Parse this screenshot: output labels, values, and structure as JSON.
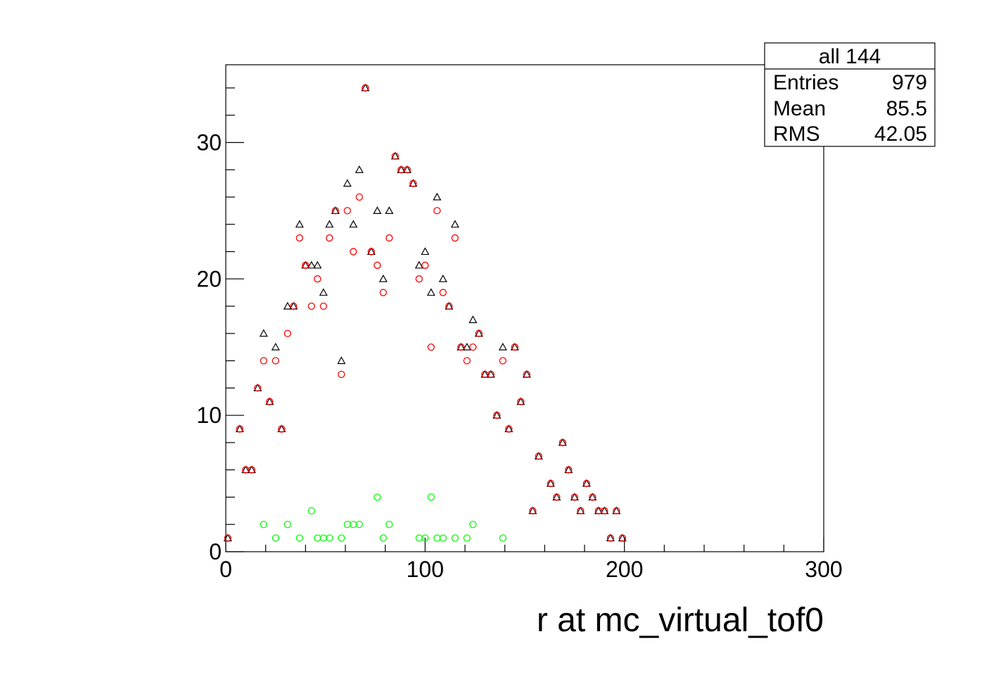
{
  "chart_data": {
    "type": "scatter",
    "title": "",
    "xlabel": "r at mc_virtual_tof0",
    "ylabel": "",
    "xlim": [
      0,
      300
    ],
    "ylim": [
      0,
      35.7
    ],
    "x_ticks": [
      0,
      100,
      200,
      300
    ],
    "y_ticks": [
      0,
      10,
      20,
      30
    ],
    "grid": false,
    "stats_box": {
      "title": "all 144",
      "rows": [
        {
          "label": "Entries",
          "value": "979"
        },
        {
          "label": "Mean",
          "value": "85.5"
        },
        {
          "label": "RMS",
          "value": "42.05"
        }
      ]
    },
    "series": [
      {
        "marker": "triangle-open",
        "color": "#000000",
        "points": [
          [
            1,
            1
          ],
          [
            7,
            9
          ],
          [
            10,
            6
          ],
          [
            13,
            6
          ],
          [
            16,
            12
          ],
          [
            19,
            16
          ],
          [
            22,
            11
          ],
          [
            25,
            15
          ],
          [
            28,
            9
          ],
          [
            31,
            18
          ],
          [
            34,
            18
          ],
          [
            37,
            24
          ],
          [
            40,
            21
          ],
          [
            43,
            21
          ],
          [
            46,
            21
          ],
          [
            49,
            19
          ],
          [
            52,
            24
          ],
          [
            55,
            25
          ],
          [
            58,
            14
          ],
          [
            61,
            27
          ],
          [
            64,
            24
          ],
          [
            67,
            28
          ],
          [
            70,
            34
          ],
          [
            73,
            22
          ],
          [
            76,
            25
          ],
          [
            79,
            20
          ],
          [
            82,
            25
          ],
          [
            85,
            29
          ],
          [
            88,
            28
          ],
          [
            91,
            28
          ],
          [
            94,
            27
          ],
          [
            97,
            21
          ],
          [
            100,
            22
          ],
          [
            103,
            19
          ],
          [
            106,
            26
          ],
          [
            109,
            20
          ],
          [
            112,
            18
          ],
          [
            115,
            24
          ],
          [
            118,
            15
          ],
          [
            121,
            15
          ],
          [
            124,
            17
          ],
          [
            127,
            16
          ],
          [
            130,
            13
          ],
          [
            133,
            13
          ],
          [
            136,
            10
          ],
          [
            139,
            15
          ],
          [
            142,
            9
          ],
          [
            145,
            15
          ],
          [
            148,
            11
          ],
          [
            151,
            13
          ],
          [
            154,
            3
          ],
          [
            157,
            7
          ],
          [
            163,
            5
          ],
          [
            166,
            4
          ],
          [
            169,
            8
          ],
          [
            172,
            6
          ],
          [
            175,
            4
          ],
          [
            178,
            3
          ],
          [
            181,
            5
          ],
          [
            184,
            4
          ],
          [
            187,
            3
          ],
          [
            190,
            3
          ],
          [
            193,
            1
          ],
          [
            196,
            3
          ],
          [
            199,
            1
          ]
        ]
      },
      {
        "marker": "circle-open",
        "color": "#ff0000",
        "points": [
          [
            1,
            1
          ],
          [
            7,
            9
          ],
          [
            10,
            6
          ],
          [
            13,
            6
          ],
          [
            16,
            12
          ],
          [
            19,
            14
          ],
          [
            22,
            11
          ],
          [
            25,
            14
          ],
          [
            28,
            9
          ],
          [
            31,
            16
          ],
          [
            34,
            18
          ],
          [
            37,
            23
          ],
          [
            40,
            21
          ],
          [
            43,
            18
          ],
          [
            46,
            20
          ],
          [
            49,
            18
          ],
          [
            52,
            23
          ],
          [
            55,
            25
          ],
          [
            58,
            13
          ],
          [
            61,
            25
          ],
          [
            64,
            22
          ],
          [
            67,
            26
          ],
          [
            70,
            34
          ],
          [
            73,
            22
          ],
          [
            76,
            21
          ],
          [
            79,
            19
          ],
          [
            82,
            23
          ],
          [
            85,
            29
          ],
          [
            88,
            28
          ],
          [
            91,
            28
          ],
          [
            94,
            27
          ],
          [
            97,
            20
          ],
          [
            100,
            21
          ],
          [
            103,
            15
          ],
          [
            106,
            25
          ],
          [
            109,
            19
          ],
          [
            112,
            18
          ],
          [
            115,
            23
          ],
          [
            118,
            15
          ],
          [
            121,
            14
          ],
          [
            124,
            15
          ],
          [
            127,
            16
          ],
          [
            130,
            13
          ],
          [
            133,
            13
          ],
          [
            136,
            10
          ],
          [
            139,
            14
          ],
          [
            142,
            9
          ],
          [
            145,
            15
          ],
          [
            148,
            11
          ],
          [
            151,
            13
          ],
          [
            154,
            3
          ],
          [
            157,
            7
          ],
          [
            163,
            5
          ],
          [
            166,
            4
          ],
          [
            169,
            8
          ],
          [
            172,
            6
          ],
          [
            175,
            4
          ],
          [
            178,
            3
          ],
          [
            181,
            5
          ],
          [
            184,
            4
          ],
          [
            187,
            3
          ],
          [
            190,
            3
          ],
          [
            193,
            1
          ],
          [
            196,
            3
          ],
          [
            199,
            1
          ]
        ]
      },
      {
        "marker": "circle-open",
        "color": "#00ff00",
        "points": [
          [
            19,
            2
          ],
          [
            25,
            1
          ],
          [
            31,
            2
          ],
          [
            37,
            1
          ],
          [
            43,
            3
          ],
          [
            46,
            1
          ],
          [
            49,
            1
          ],
          [
            52,
            1
          ],
          [
            58,
            1
          ],
          [
            61,
            2
          ],
          [
            64,
            2
          ],
          [
            67,
            2
          ],
          [
            76,
            4
          ],
          [
            79,
            1
          ],
          [
            82,
            2
          ],
          [
            97,
            1
          ],
          [
            100,
            1
          ],
          [
            103,
            4
          ],
          [
            106,
            1
          ],
          [
            109,
            1
          ],
          [
            115,
            1
          ],
          [
            121,
            1
          ],
          [
            124,
            2
          ],
          [
            139,
            1
          ]
        ]
      }
    ]
  }
}
